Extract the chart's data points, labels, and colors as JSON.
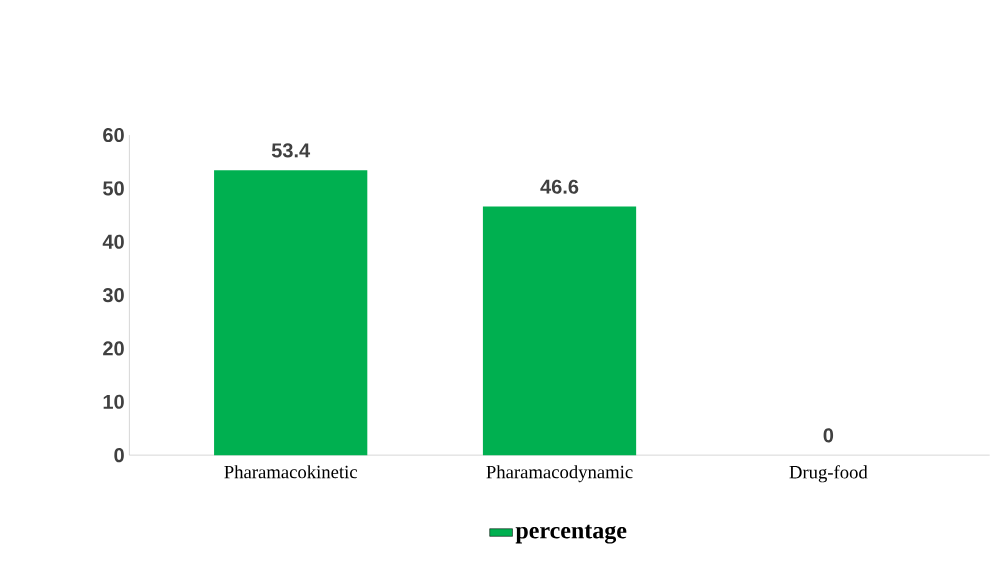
{
  "chart_data": {
    "type": "bar",
    "categories": [
      "Pharamacokinetic",
      "Pharamacodynamic",
      "Drug-food"
    ],
    "series": [
      {
        "name": "percentage",
        "color": "#00b050",
        "values": [
          53.4,
          46.6,
          0
        ]
      }
    ],
    "ylim": [
      0,
      60
    ],
    "yticks": [
      0,
      10,
      20,
      30,
      40,
      50,
      60
    ],
    "data_labels": true,
    "legend": "bottom"
  }
}
